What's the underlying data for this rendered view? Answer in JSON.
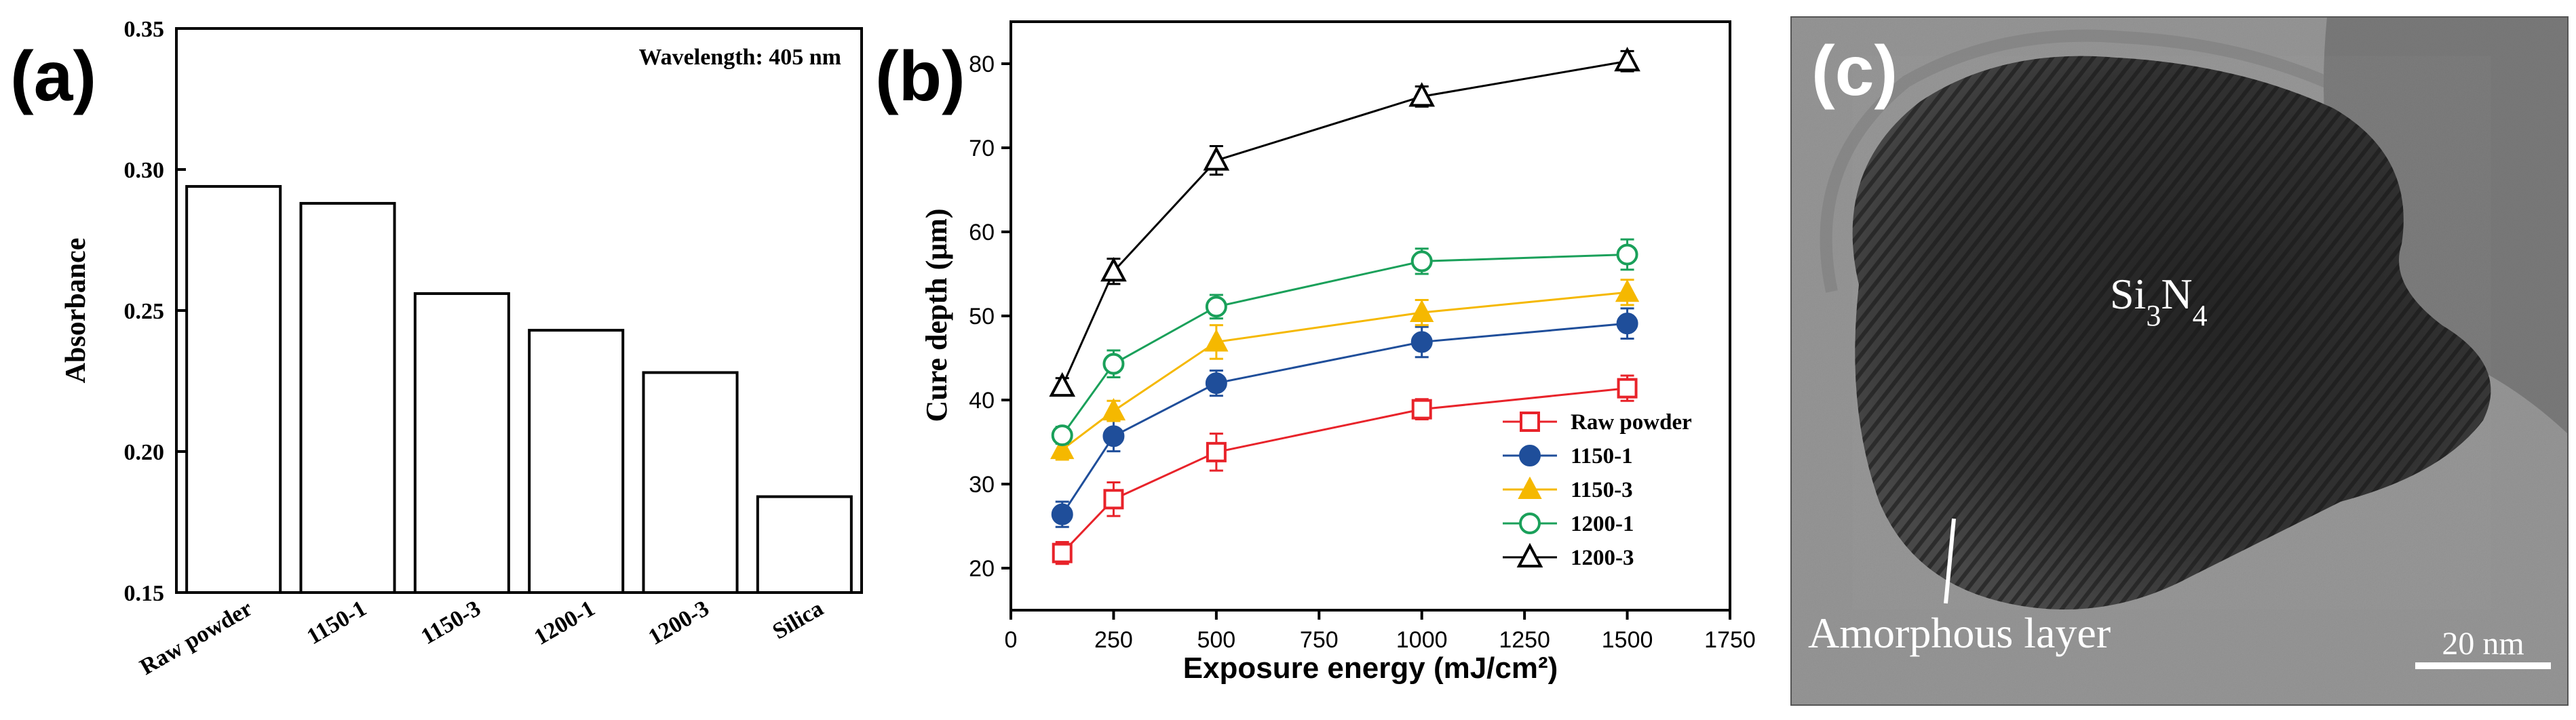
{
  "panels": {
    "a": {
      "label": "(a)"
    },
    "b": {
      "label": "(b)"
    },
    "c": {
      "label": "(c)"
    }
  },
  "chart_data": [
    {
      "type": "bar",
      "panel": "(a)",
      "annotation": "Wavelength: 405 nm",
      "xlabel": "",
      "ylabel": "Absorbance",
      "categories": [
        "Raw powder",
        "1150-1",
        "1150-3",
        "1200-1",
        "1200-3",
        "Silica"
      ],
      "values": [
        0.294,
        0.288,
        0.256,
        0.243,
        0.228,
        0.184
      ],
      "ylim": [
        0.15,
        0.35
      ],
      "yticks": [
        "0.15",
        "0.20",
        "0.25",
        "0.30",
        "0.35"
      ],
      "bar_fill": "#ffffff",
      "bar_stroke": "#000000"
    },
    {
      "type": "line",
      "panel": "(b)",
      "xlabel": "Exposure energy (mJ/cm²)",
      "ylabel": "Cure depth (μm)",
      "xlim": [
        0,
        1750
      ],
      "ylim": [
        15,
        85
      ],
      "xticks": [
        "0",
        "250",
        "500",
        "750",
        "1000",
        "1250",
        "1500",
        "1750"
      ],
      "yticks": [
        "20",
        "30",
        "40",
        "50",
        "60",
        "70",
        "80"
      ],
      "x": [
        125,
        250,
        500,
        1000,
        1500
      ],
      "legend_position": "bottom-right",
      "series": [
        {
          "name": "Raw powder",
          "color": "#e8232a",
          "marker": "open-square",
          "values": [
            21.8,
            28.2,
            33.8,
            38.9,
            41.4
          ],
          "errors": [
            1.3,
            2.0,
            2.2,
            1.2,
            1.5
          ]
        },
        {
          "name": "1150-1",
          "color": "#1f4e9a",
          "marker": "filled-circle",
          "values": [
            26.4,
            35.7,
            42.0,
            46.9,
            49.1
          ],
          "errors": [
            1.5,
            1.8,
            1.5,
            1.8,
            1.8
          ]
        },
        {
          "name": "1150-3",
          "color": "#f5b800",
          "marker": "filled-triangle",
          "values": [
            34.1,
            38.7,
            46.9,
            50.4,
            52.8
          ],
          "errors": [
            1.2,
            1.2,
            2.0,
            1.5,
            1.5
          ]
        },
        {
          "name": "1200-1",
          "color": "#1aa05a",
          "marker": "open-circle",
          "values": [
            35.8,
            44.3,
            51.1,
            56.5,
            57.3
          ],
          "errors": [
            1.0,
            1.6,
            1.4,
            1.5,
            1.8
          ]
        },
        {
          "name": "1200-3",
          "color": "#000000",
          "marker": "open-triangle",
          "values": [
            41.6,
            55.3,
            68.5,
            76.1,
            80.3
          ],
          "errors": [
            1.0,
            1.5,
            1.7,
            1.2,
            1.2
          ]
        }
      ]
    }
  ],
  "tem": {
    "label": "Si3N4",
    "label_main": "Si",
    "label_sub1": "3",
    "label_mid": "N",
    "label_sub2": "4",
    "annotation": "Amorphous layer",
    "scale_bar": "20 nm"
  }
}
